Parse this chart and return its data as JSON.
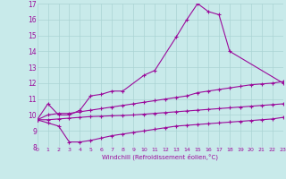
{
  "xlabel": "Windchill (Refroidissement éolien,°C)",
  "ylim": [
    8,
    17
  ],
  "xlim": [
    0,
    23
  ],
  "bg_color": "#c8eaea",
  "line_color": "#9b0a9b",
  "grid_color": "#aad4d4",
  "line_top_x": [
    0,
    1,
    2,
    3,
    4,
    5,
    6,
    7,
    8,
    10,
    11,
    13,
    14,
    15,
    16,
    17,
    18,
    23
  ],
  "line_top_y": [
    9.7,
    10.7,
    10.0,
    10.0,
    10.3,
    11.2,
    11.3,
    11.5,
    11.5,
    12.5,
    12.8,
    14.9,
    16.0,
    17.0,
    16.5,
    16.3,
    14.0,
    12.0
  ],
  "line_mid_x": [
    0,
    1,
    2,
    3,
    4,
    5,
    6,
    7,
    8,
    9,
    10,
    11,
    12,
    13,
    14,
    15,
    16,
    17,
    18,
    19,
    20,
    21,
    22,
    23
  ],
  "line_mid_y": [
    9.7,
    10.0,
    10.1,
    10.1,
    10.2,
    10.3,
    10.4,
    10.5,
    10.6,
    10.7,
    10.8,
    10.9,
    11.0,
    11.1,
    11.2,
    11.4,
    11.5,
    11.6,
    11.7,
    11.8,
    11.9,
    11.95,
    12.0,
    12.1
  ],
  "line_low_x": [
    0,
    1,
    2,
    3,
    4,
    5,
    6,
    7,
    8,
    9,
    10,
    11,
    12,
    13,
    14,
    15,
    16,
    17,
    18,
    19,
    20,
    21,
    22,
    23
  ],
  "line_low_y": [
    9.7,
    9.7,
    9.75,
    9.8,
    9.85,
    9.9,
    9.92,
    9.95,
    9.97,
    10.0,
    10.05,
    10.1,
    10.15,
    10.2,
    10.25,
    10.3,
    10.35,
    10.4,
    10.45,
    10.5,
    10.55,
    10.6,
    10.65,
    10.7
  ],
  "line_bot_x": [
    0,
    1,
    2,
    3,
    4,
    5,
    6,
    7,
    8,
    9,
    10,
    11,
    12,
    13,
    14,
    15,
    16,
    17,
    18,
    19,
    20,
    21,
    22,
    23
  ],
  "line_bot_y": [
    9.7,
    9.5,
    9.3,
    8.3,
    8.3,
    8.4,
    8.55,
    8.7,
    8.8,
    8.9,
    9.0,
    9.1,
    9.2,
    9.3,
    9.35,
    9.4,
    9.45,
    9.5,
    9.55,
    9.6,
    9.65,
    9.7,
    9.75,
    9.85
  ]
}
